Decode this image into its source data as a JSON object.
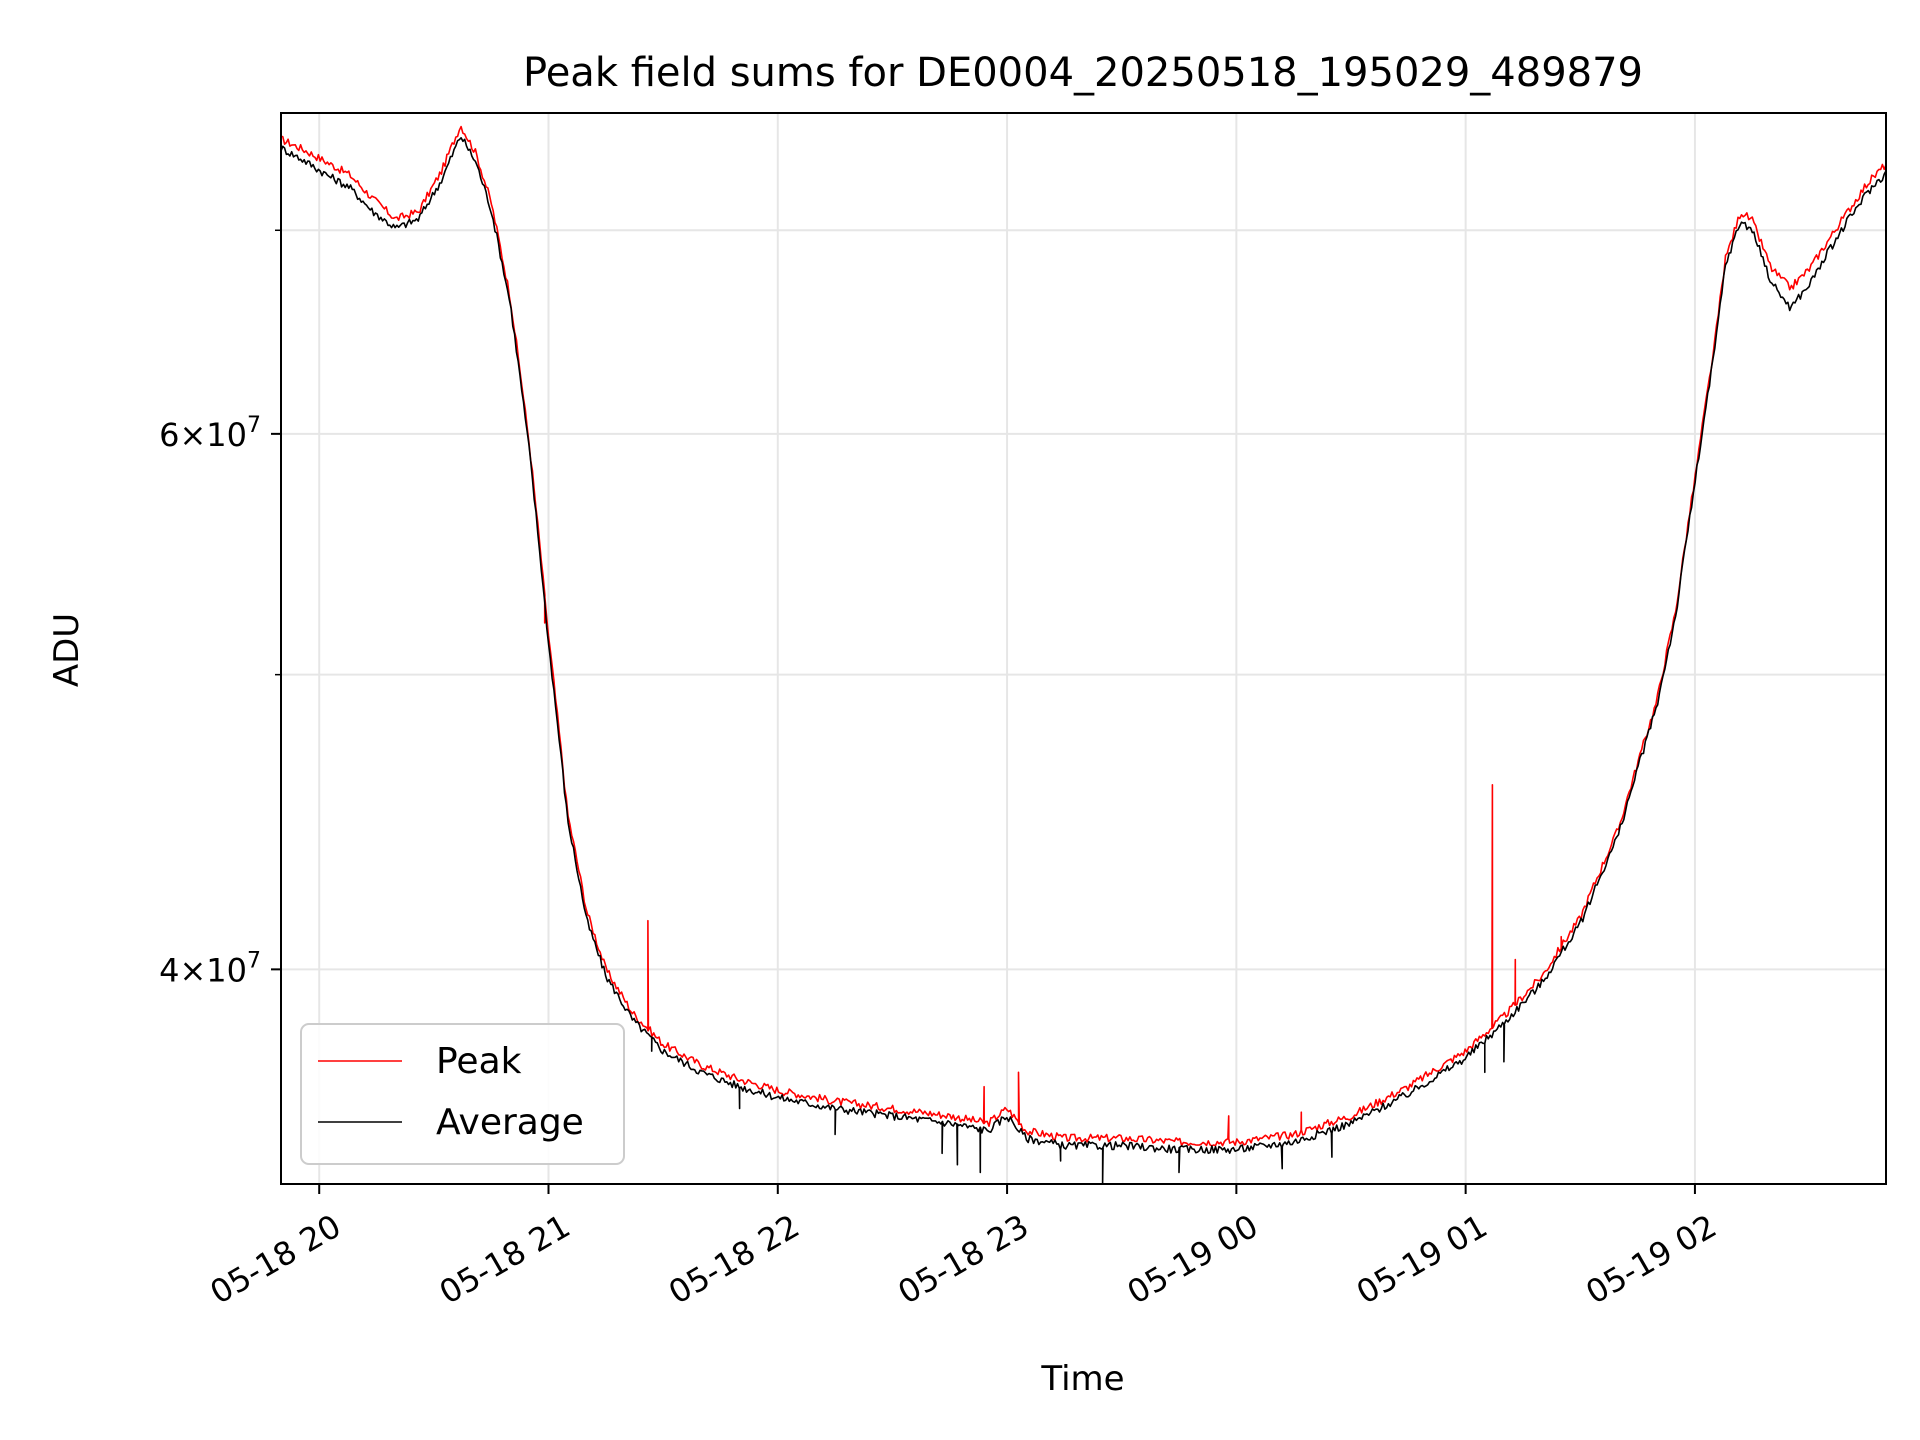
{
  "chart_data": {
    "type": "line",
    "title": "Peak field sums for DE0004_20250518_195029_489879",
    "xlabel": "Time",
    "ylabel": "ADU",
    "yscale": "log",
    "xlim": [
      "2025-05-18T19:50:00",
      "2025-05-19T02:50:00"
    ],
    "ylim": [
      34000000,
      76500000
    ],
    "grid": true,
    "legend_position": "bottom-left",
    "x_ticks": [
      "05-18 20",
      "05-18 21",
      "05-18 22",
      "05-18 23",
      "05-19 00",
      "05-19 01",
      "05-19 02"
    ],
    "x_tick_times": [
      "2025-05-18T20:00:00",
      "2025-05-18T21:00:00",
      "2025-05-18T22:00:00",
      "2025-05-18T23:00:00",
      "2025-05-19T00:00:00",
      "2025-05-19T01:00:00",
      "2025-05-19T02:00:00"
    ],
    "y_ticks": [
      {
        "value": 40000000,
        "label_base": "4×10",
        "label_exp": "7"
      },
      {
        "value": 60000000,
        "label_base": "6×10",
        "label_exp": "7"
      }
    ],
    "y_minor_ticks": [
      50000000,
      70000000
    ],
    "series": [
      {
        "name": "Peak",
        "color": "#ff0000",
        "points": [
          [
            "2025-05-18T19:50:00",
            75000000
          ],
          [
            "2025-05-18T19:56:00",
            74400000
          ],
          [
            "2025-05-18T20:02:00",
            73700000
          ],
          [
            "2025-05-18T20:08:00",
            73000000
          ],
          [
            "2025-05-18T20:14:00",
            71700000
          ],
          [
            "2025-05-18T20:20:00",
            70600000
          ],
          [
            "2025-05-18T20:26:00",
            71000000
          ],
          [
            "2025-05-18T20:32:00",
            73200000
          ],
          [
            "2025-05-18T20:37:00",
            75800000
          ],
          [
            "2025-05-18T20:41:00",
            74200000
          ],
          [
            "2025-05-18T20:45:00",
            71500000
          ],
          [
            "2025-05-18T20:50:00",
            66500000
          ],
          [
            "2025-05-18T20:55:00",
            59500000
          ],
          [
            "2025-05-18T21:00:00",
            51500000
          ],
          [
            "2025-05-18T21:05:00",
            45000000
          ],
          [
            "2025-05-18T21:10:00",
            41800000
          ],
          [
            "2025-05-18T21:15:00",
            40000000
          ],
          [
            "2025-05-18T21:22:00",
            38700000
          ],
          [
            "2025-05-18T21:30:00",
            37800000
          ],
          [
            "2025-05-18T21:40:00",
            37200000
          ],
          [
            "2025-05-18T21:50:00",
            36800000
          ],
          [
            "2025-05-18T22:00:00",
            36500000
          ],
          [
            "2025-05-18T22:15:00",
            36200000
          ],
          [
            "2025-05-18T22:30:00",
            36000000
          ],
          [
            "2025-05-18T22:45:00",
            35800000
          ],
          [
            "2025-05-18T22:55:00",
            35600000
          ],
          [
            "2025-05-18T23:00:00",
            36000000
          ],
          [
            "2025-05-18T23:05:00",
            35400000
          ],
          [
            "2025-05-18T23:15:00",
            35200000
          ],
          [
            "2025-05-18T23:30:00",
            35200000
          ],
          [
            "2025-05-18T23:45:00",
            35100000
          ],
          [
            "2025-05-19T00:00:00",
            35100000
          ],
          [
            "2025-05-19T00:15:00",
            35300000
          ],
          [
            "2025-05-19T00:30:00",
            35800000
          ],
          [
            "2025-05-19T00:45:00",
            36600000
          ],
          [
            "2025-05-19T01:00:00",
            37600000
          ],
          [
            "2025-05-19T01:10:00",
            38600000
          ],
          [
            "2025-05-19T01:20:00",
            39800000
          ],
          [
            "2025-05-19T01:30:00",
            41600000
          ],
          [
            "2025-05-19T01:40:00",
            44500000
          ],
          [
            "2025-05-19T01:50:00",
            49000000
          ],
          [
            "2025-05-19T01:55:00",
            52500000
          ],
          [
            "2025-05-19T02:00:00",
            58000000
          ],
          [
            "2025-05-19T02:05:00",
            64000000
          ],
          [
            "2025-05-19T02:08:00",
            68500000
          ],
          [
            "2025-05-19T02:12:00",
            71000000
          ],
          [
            "2025-05-19T02:15:00",
            70500000
          ],
          [
            "2025-05-19T02:20:00",
            68000000
          ],
          [
            "2025-05-19T02:25:00",
            67000000
          ],
          [
            "2025-05-19T02:30:00",
            68000000
          ],
          [
            "2025-05-19T02:35:00",
            69500000
          ],
          [
            "2025-05-19T02:40:00",
            71000000
          ],
          [
            "2025-05-19T02:45:00",
            72500000
          ],
          [
            "2025-05-19T02:50:00",
            73600000
          ]
        ],
        "spikes": [
          [
            "2025-05-18T20:59:00",
            52000000
          ],
          [
            "2025-05-18T21:26:00",
            41500000
          ],
          [
            "2025-05-18T22:54:00",
            36600000
          ],
          [
            "2025-05-18T23:03:00",
            37000000
          ],
          [
            "2025-05-18T23:58:00",
            35800000
          ],
          [
            "2025-05-19T00:17:00",
            35900000
          ],
          [
            "2025-05-19T01:07:00",
            46000000
          ],
          [
            "2025-05-19T01:13:00",
            40300000
          ],
          [
            "2025-05-19T01:25:00",
            41000000
          ]
        ]
      },
      {
        "name": "Average",
        "color": "#000000",
        "points": [
          [
            "2025-05-18T19:50:00",
            74500000
          ],
          [
            "2025-05-18T19:56:00",
            73800000
          ],
          [
            "2025-05-18T20:02:00",
            73000000
          ],
          [
            "2025-05-18T20:08:00",
            72300000
          ],
          [
            "2025-05-18T20:14:00",
            71000000
          ],
          [
            "2025-05-18T20:20:00",
            70100000
          ],
          [
            "2025-05-18T20:26:00",
            70600000
          ],
          [
            "2025-05-18T20:32:00",
            72700000
          ],
          [
            "2025-05-18T20:37:00",
            75200000
          ],
          [
            "2025-05-18T20:41:00",
            73700000
          ],
          [
            "2025-05-18T20:45:00",
            71100000
          ],
          [
            "2025-05-18T20:50:00",
            66200000
          ],
          [
            "2025-05-18T20:55:00",
            59200000
          ],
          [
            "2025-05-18T21:00:00",
            51200000
          ],
          [
            "2025-05-18T21:05:00",
            44800000
          ],
          [
            "2025-05-18T21:10:00",
            41500000
          ],
          [
            "2025-05-18T21:15:00",
            39800000
          ],
          [
            "2025-05-18T21:22:00",
            38500000
          ],
          [
            "2025-05-18T21:30:00",
            37600000
          ],
          [
            "2025-05-18T21:40:00",
            37000000
          ],
          [
            "2025-05-18T21:50:00",
            36600000
          ],
          [
            "2025-05-18T22:00:00",
            36300000
          ],
          [
            "2025-05-18T22:15:00",
            36000000
          ],
          [
            "2025-05-18T22:30:00",
            35800000
          ],
          [
            "2025-05-18T22:45:00",
            35600000
          ],
          [
            "2025-05-18T22:55:00",
            35400000
          ],
          [
            "2025-05-18T23:00:00",
            35800000
          ],
          [
            "2025-05-18T23:05:00",
            35200000
          ],
          [
            "2025-05-18T23:15:00",
            35000000
          ],
          [
            "2025-05-18T23:30:00",
            35000000
          ],
          [
            "2025-05-18T23:45:00",
            34900000
          ],
          [
            "2025-05-19T00:00:00",
            34900000
          ],
          [
            "2025-05-19T00:15:00",
            35100000
          ],
          [
            "2025-05-19T00:30:00",
            35600000
          ],
          [
            "2025-05-19T00:45:00",
            36400000
          ],
          [
            "2025-05-19T01:00:00",
            37400000
          ],
          [
            "2025-05-19T01:10:00",
            38400000
          ],
          [
            "2025-05-19T01:20:00",
            39600000
          ],
          [
            "2025-05-19T01:30:00",
            41400000
          ],
          [
            "2025-05-19T01:40:00",
            44300000
          ],
          [
            "2025-05-19T01:50:00",
            48800000
          ],
          [
            "2025-05-19T01:55:00",
            52300000
          ],
          [
            "2025-05-19T02:00:00",
            57800000
          ],
          [
            "2025-05-19T02:05:00",
            63700000
          ],
          [
            "2025-05-19T02:08:00",
            68200000
          ],
          [
            "2025-05-19T02:12:00",
            70500000
          ],
          [
            "2025-05-19T02:15:00",
            70000000
          ],
          [
            "2025-05-19T02:20:00",
            67300000
          ],
          [
            "2025-05-19T02:25:00",
            66000000
          ],
          [
            "2025-05-19T02:30:00",
            67200000
          ],
          [
            "2025-05-19T02:35:00",
            68900000
          ],
          [
            "2025-05-19T02:40:00",
            70500000
          ],
          [
            "2025-05-19T02:45:00",
            72000000
          ],
          [
            "2025-05-19T02:50:00",
            73100000
          ]
        ],
        "dips": [
          [
            "2025-05-18T21:27:00",
            37600000
          ],
          [
            "2025-05-18T21:50:00",
            36000000
          ],
          [
            "2025-05-18T22:15:00",
            35300000
          ],
          [
            "2025-05-18T22:43:00",
            34800000
          ],
          [
            "2025-05-18T22:47:00",
            34500000
          ],
          [
            "2025-05-18T22:53:00",
            34300000
          ],
          [
            "2025-05-18T23:14:00",
            34600000
          ],
          [
            "2025-05-18T23:25:00",
            34000000
          ],
          [
            "2025-05-18T23:45:00",
            34300000
          ],
          [
            "2025-05-19T00:12:00",
            34400000
          ],
          [
            "2025-05-19T00:25:00",
            34700000
          ],
          [
            "2025-05-19T01:05:00",
            37000000
          ],
          [
            "2025-05-19T01:10:00",
            37300000
          ]
        ]
      }
    ]
  }
}
